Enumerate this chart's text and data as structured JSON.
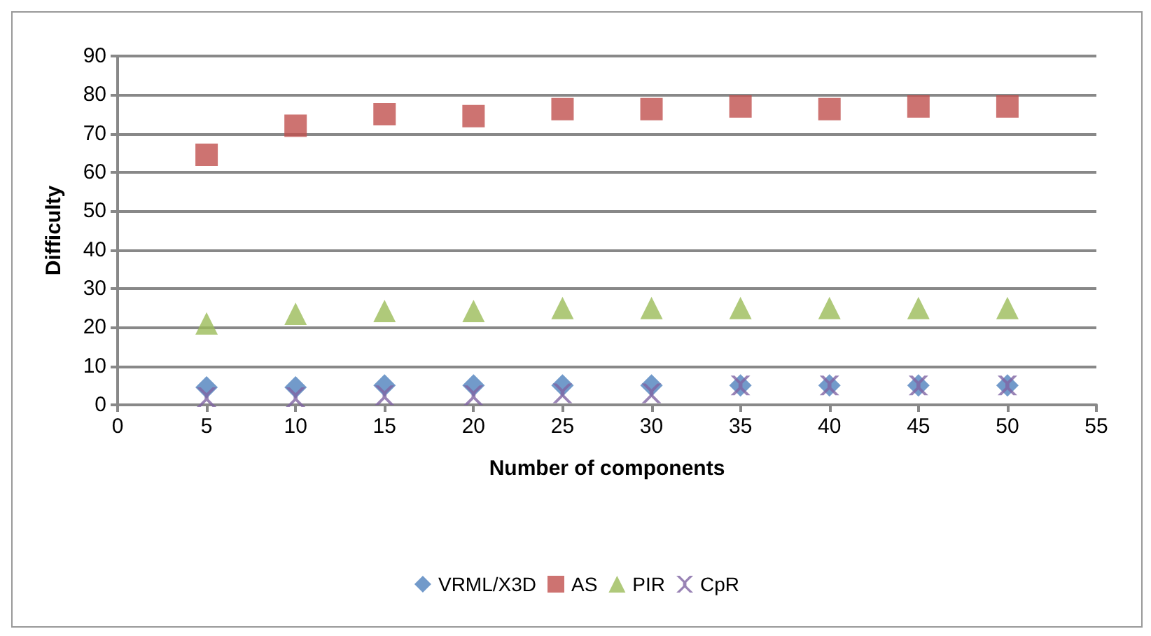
{
  "chart_data": {
    "type": "scatter",
    "xlabel": "Number of components",
    "ylabel": "Difficulty",
    "x": [
      5,
      10,
      15,
      20,
      25,
      30,
      35,
      40,
      45,
      50
    ],
    "series": [
      {
        "name": "VRML/X3D",
        "color": "#4f81bd",
        "marker": "diamond",
        "values": [
          4.5,
          4.5,
          5,
          5,
          5,
          5,
          5,
          5,
          5,
          5
        ]
      },
      {
        "name": "AS",
        "color": "#c0504d",
        "marker": "square",
        "values": [
          64.5,
          72,
          75,
          74.5,
          76.3,
          76.3,
          77,
          76.3,
          77,
          77
        ]
      },
      {
        "name": "PIR",
        "color": "#9bbb59",
        "marker": "triangle",
        "values": [
          21,
          23.5,
          24.2,
          24.2,
          25,
          25,
          25,
          25,
          25,
          25
        ]
      },
      {
        "name": "CpR",
        "color": "#8064a2",
        "marker": "cross",
        "values": [
          2,
          2,
          2.5,
          2.5,
          3,
          3,
          5,
          5,
          5,
          5
        ]
      }
    ],
    "xlim": [
      0,
      55
    ],
    "xticks": [
      0,
      5,
      10,
      15,
      20,
      25,
      30,
      35,
      40,
      45,
      50,
      55
    ],
    "ylim": [
      0,
      90
    ],
    "yticks": [
      0,
      10,
      20,
      30,
      40,
      50,
      60,
      70,
      80,
      90
    ],
    "grid": "y",
    "legend": "bottom"
  }
}
